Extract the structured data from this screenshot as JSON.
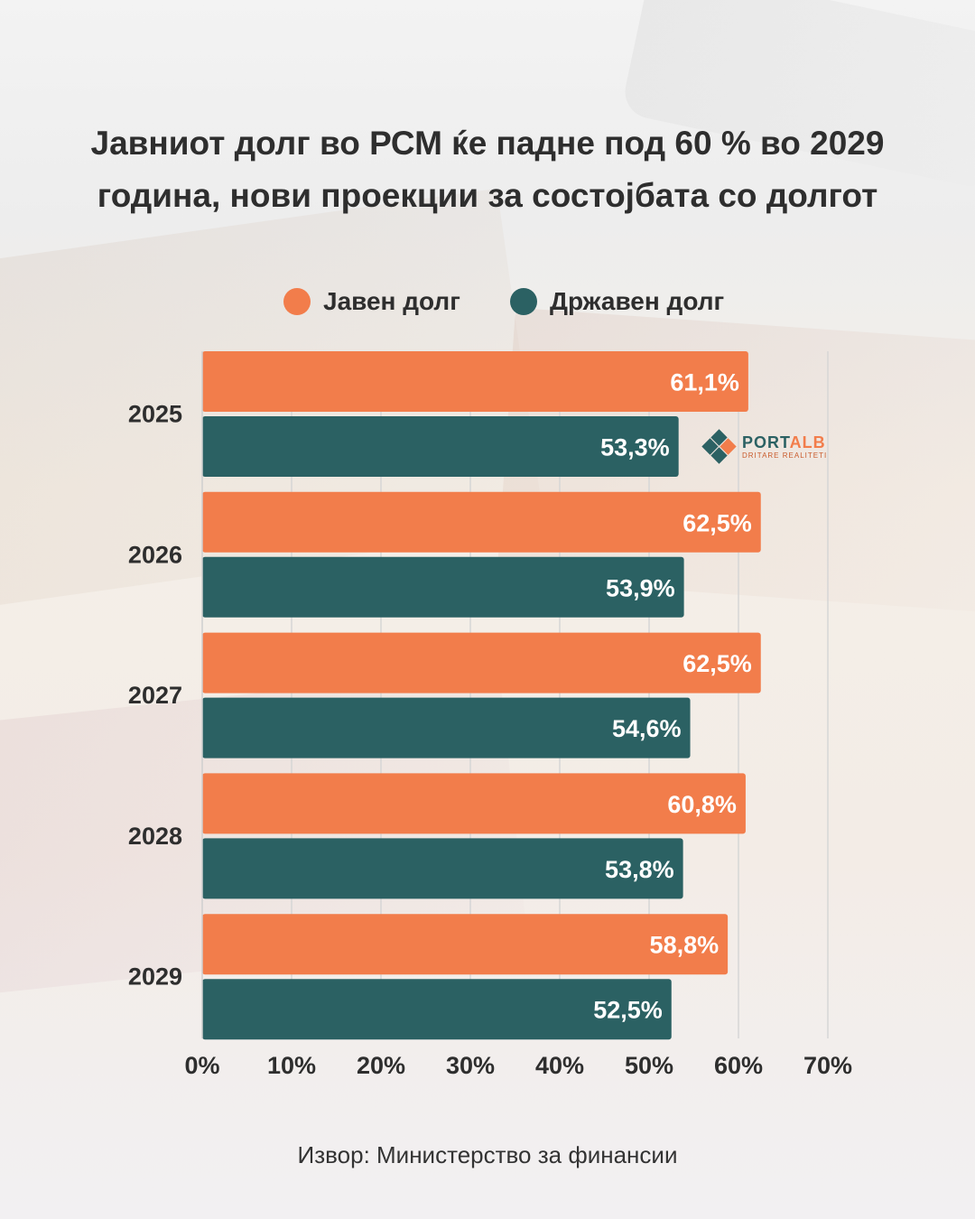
{
  "title": {
    "line1": "Јавниот долг во РСМ ќе падне под 60 % во 2029",
    "line2": "година, нови проекции за состојбата со долгот"
  },
  "legend": [
    {
      "label": "Јавен долг",
      "color": "#f27d4b"
    },
    {
      "label": "Државен долг",
      "color": "#2b6163"
    }
  ],
  "logo": {
    "main_a": "PORT",
    "main_b": "ALB",
    "sub": "DRITARE REALITETI"
  },
  "source": "Извор: Министерство за финансии",
  "chart_data": {
    "type": "bar",
    "orientation": "horizontal",
    "categories": [
      "2025",
      "2026",
      "2027",
      "2028",
      "2029"
    ],
    "series": [
      {
        "name": "Јавен долг",
        "color": "#f27d4b",
        "values": [
          61.1,
          62.5,
          62.5,
          60.8,
          58.8
        ],
        "labels": [
          "61,1%",
          "62,5%",
          "62,5%",
          "60,8%",
          "58,8%"
        ]
      },
      {
        "name": "Државен долг",
        "color": "#2b6163",
        "values": [
          53.3,
          53.9,
          54.6,
          53.8,
          52.5
        ],
        "labels": [
          "53,3%",
          "53,9%",
          "54,6%",
          "53,8%",
          "52,5%"
        ]
      }
    ],
    "xlim": [
      0,
      70
    ],
    "xticks": [
      0,
      10,
      20,
      30,
      40,
      50,
      60,
      70
    ],
    "xtick_labels": [
      "0%",
      "10%",
      "20%",
      "30%",
      "40%",
      "50%",
      "60%",
      "70%"
    ],
    "grid": "vertical",
    "legend_position": "top"
  }
}
